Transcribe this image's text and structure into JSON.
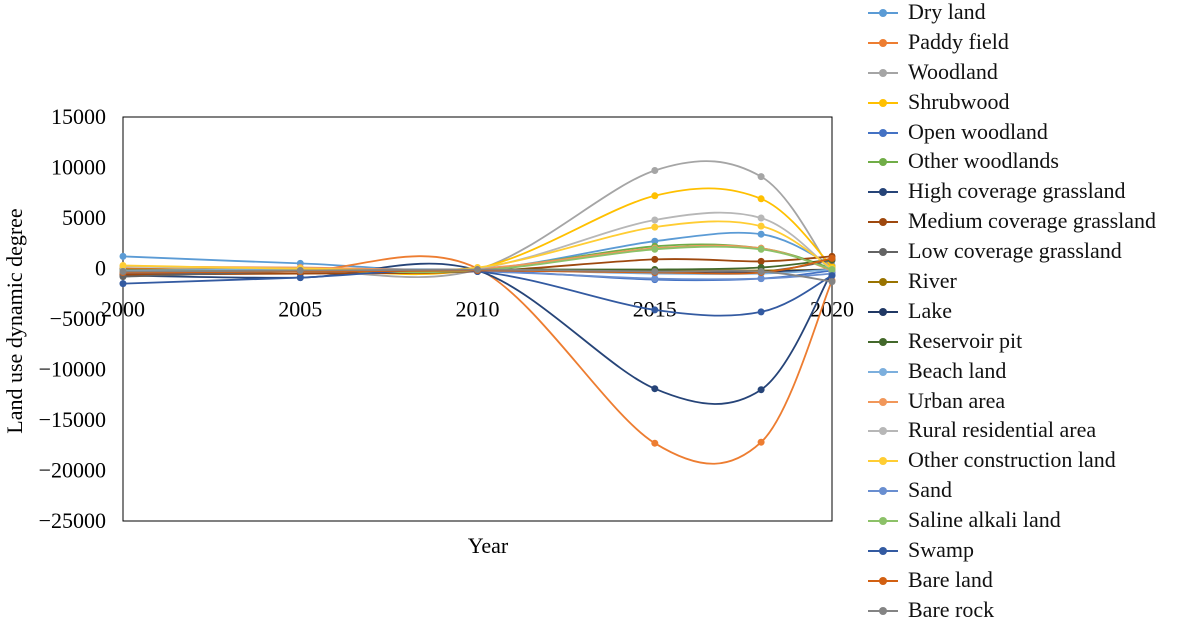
{
  "chart_data": {
    "type": "line",
    "title": "",
    "xlabel": "Year",
    "ylabel": "Land use dynamic degree",
    "x_ticks": [
      "2000",
      "2005",
      "2010",
      "2015",
      "2020"
    ],
    "y_ticks": [
      "15000",
      "10000",
      "5000",
      "0",
      "−5000",
      "−10000",
      "−15000",
      "−20000",
      "−25000"
    ],
    "ylim": [
      -25000,
      15000
    ],
    "x": [
      2000,
      2005,
      2010,
      2015,
      2018,
      2020
    ],
    "series": [
      {
        "name": "Dry land",
        "color": "#5b9bd5",
        "values": [
          1200,
          500,
          -100,
          2700,
          3400,
          300
        ]
      },
      {
        "name": "Paddy field",
        "color": "#ed7d31",
        "values": [
          0,
          -200,
          0,
          -17300,
          -17200,
          -1200
        ]
      },
      {
        "name": "Woodland",
        "color": "#a5a5a5",
        "values": [
          -300,
          -200,
          -100,
          9700,
          9100,
          -300
        ]
      },
      {
        "name": "Shrubwood",
        "color": "#ffc000",
        "values": [
          -200,
          -100,
          0,
          7200,
          6900,
          200
        ]
      },
      {
        "name": "Open woodland",
        "color": "#4472c4",
        "values": [
          -500,
          -300,
          -200,
          -1100,
          -1000,
          -200
        ]
      },
      {
        "name": "Other woodlands",
        "color": "#70ad47",
        "values": [
          -300,
          -200,
          -100,
          2200,
          2000,
          0
        ]
      },
      {
        "name": "High coverage grassland",
        "color": "#264478",
        "values": [
          -700,
          -900,
          -200,
          -11900,
          -12000,
          -300
        ]
      },
      {
        "name": "Medium coverage grassland",
        "color": "#9e480e",
        "values": [
          -600,
          -500,
          -300,
          900,
          700,
          1200
        ]
      },
      {
        "name": "Low coverage grassland",
        "color": "#636363",
        "values": [
          -800,
          -300,
          -200,
          -200,
          -300,
          800
        ]
      },
      {
        "name": "River",
        "color": "#997300",
        "values": [
          -100,
          -100,
          -100,
          -200,
          -200,
          -100
        ]
      },
      {
        "name": "Lake",
        "color": "#203864",
        "values": [
          -300,
          -200,
          -100,
          -300,
          -300,
          -100
        ]
      },
      {
        "name": "Reservoir pit",
        "color": "#43682b",
        "values": [
          -200,
          -150,
          -100,
          -100,
          100,
          900
        ]
      },
      {
        "name": "Beach land",
        "color": "#7cafdd",
        "values": [
          -200,
          -100,
          -100,
          -500,
          -500,
          -100
        ]
      },
      {
        "name": "Urban area",
        "color": "#f1975a",
        "values": [
          200,
          100,
          0,
          2000,
          2000,
          -200
        ]
      },
      {
        "name": "Rural residential area",
        "color": "#b7b7b7",
        "values": [
          200,
          0,
          0,
          4800,
          5000,
          -200
        ]
      },
      {
        "name": "Other construction land",
        "color": "#ffcd33",
        "values": [
          300,
          0,
          100,
          4100,
          4200,
          0
        ]
      },
      {
        "name": "Sand",
        "color": "#698ed0",
        "values": [
          -400,
          -300,
          -300,
          -1000,
          -1000,
          -500
        ]
      },
      {
        "name": "Saline alkali land",
        "color": "#8cc168",
        "values": [
          -300,
          -200,
          -200,
          1900,
          1900,
          -100
        ]
      },
      {
        "name": "Swamp",
        "color": "#335aa1",
        "values": [
          -1500,
          -900,
          -300,
          -4100,
          -4300,
          -700
        ]
      },
      {
        "name": "Bare land",
        "color": "#d26012",
        "values": [
          -400,
          -300,
          -200,
          -400,
          -400,
          1000
        ]
      },
      {
        "name": "Bare rock",
        "color": "#848484",
        "values": [
          -300,
          -200,
          -100,
          -300,
          -300,
          -1300
        ]
      }
    ],
    "grid": false,
    "legend_position": "right"
  }
}
